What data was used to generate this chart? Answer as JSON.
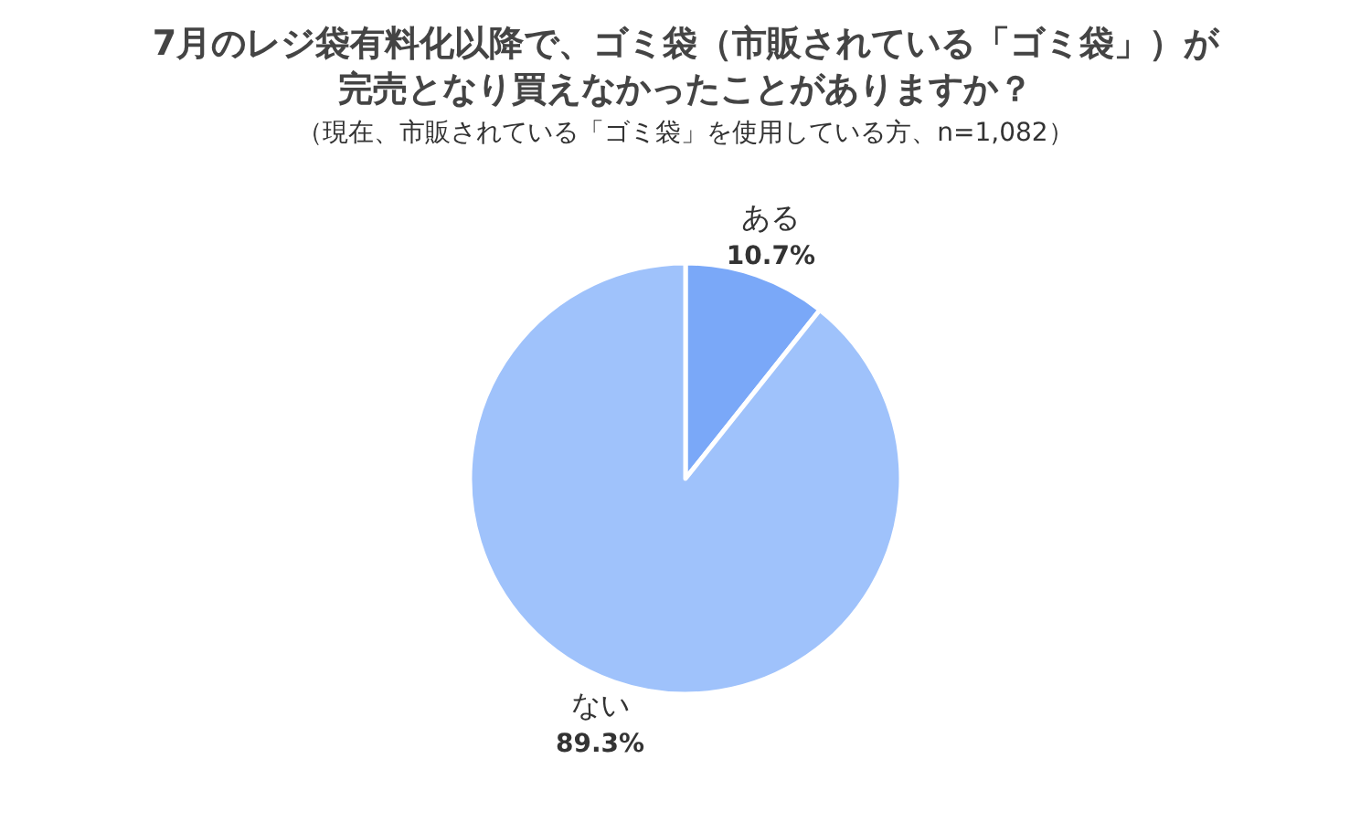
{
  "chart_data": {
    "type": "pie",
    "title": "7月のレジ袋有料化以降で、ゴミ袋（市販されている「ゴミ袋」）が完売となり買えなかったことがありますか？",
    "subtitle": "（現在、市販されている「ゴミ袋」を使用している方、n=1,082）",
    "categories": [
      "ある",
      "ない"
    ],
    "values": [
      10.7,
      89.3
    ],
    "colors": [
      "#7aa8f8",
      "#9fc2fb"
    ],
    "value_labels": [
      "10.7%",
      "89.3%"
    ]
  }
}
